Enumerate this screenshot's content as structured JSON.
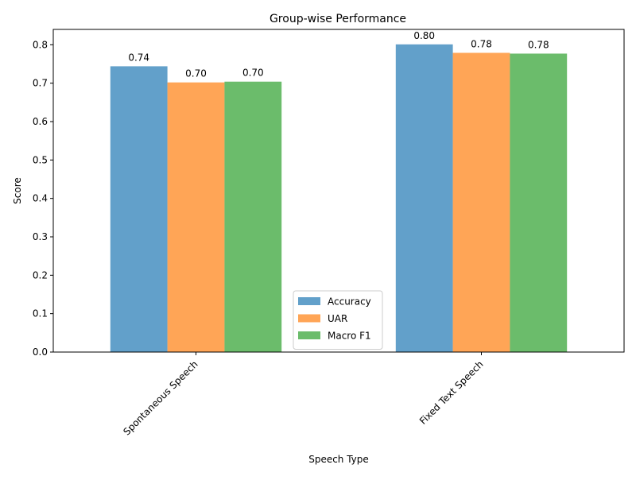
{
  "chart_data": {
    "type": "bar",
    "title": "Group-wise Performance",
    "xlabel": "Speech Type",
    "ylabel": "Score",
    "categories": [
      "Spontaneous Speech",
      "Fixed Text Speech"
    ],
    "series": [
      {
        "name": "Accuracy",
        "values": [
          0.744,
          0.801
        ],
        "labels": [
          "0.74",
          "0.80"
        ],
        "color": "#1f77b4"
      },
      {
        "name": "UAR",
        "values": [
          0.702,
          0.779
        ],
        "labels": [
          "0.70",
          "0.78"
        ],
        "color": "#ff7f0e"
      },
      {
        "name": "Macro F1",
        "values": [
          0.704,
          0.777
        ],
        "labels": [
          "0.70",
          "0.78"
        ],
        "color": "#2ca02c"
      }
    ],
    "ylim": [
      0,
      0.84
    ],
    "yticks": [
      0.0,
      0.1,
      0.2,
      0.3,
      0.4,
      0.5,
      0.6,
      0.7,
      0.8
    ],
    "ytick_labels": [
      "0.0",
      "0.1",
      "0.2",
      "0.3",
      "0.4",
      "0.5",
      "0.6",
      "0.7",
      "0.8"
    ],
    "bar_opacity": 0.7,
    "grid": false,
    "legend_position": "lower center",
    "xtick_rotation": 45
  }
}
